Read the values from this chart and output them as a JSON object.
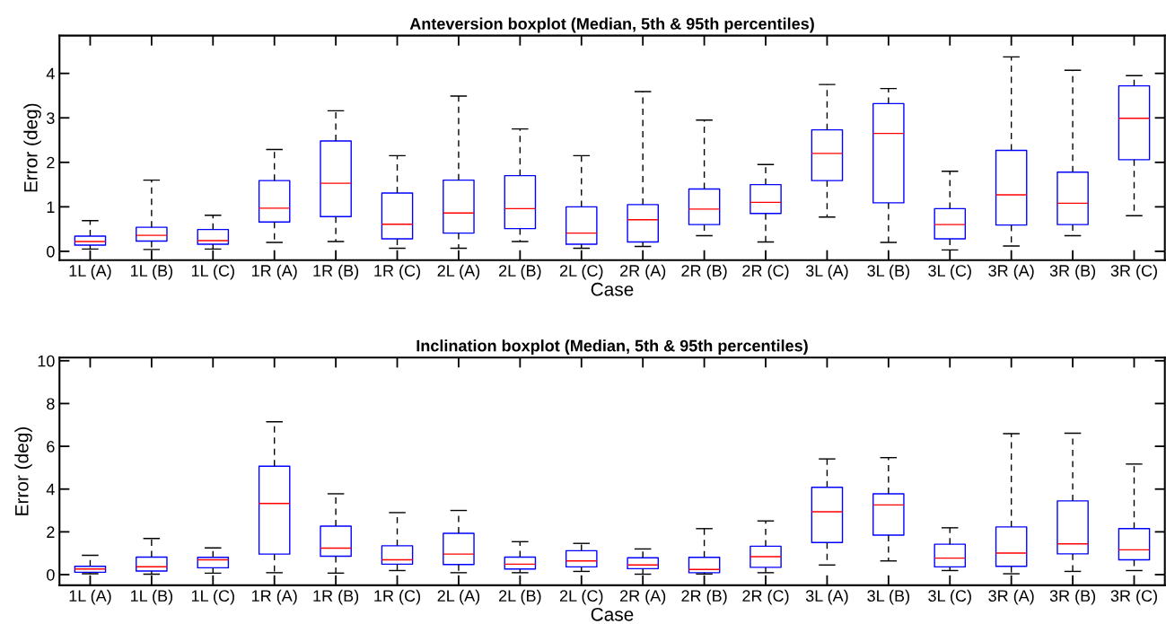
{
  "chart_data": [
    {
      "type": "box",
      "title": "Anteversion boxplot (Median, 5th & 95th percentiles)",
      "xlabel": "Case",
      "ylabel": "Error (deg)",
      "categories": [
        "1L (A)",
        "1L (B)",
        "1L (C)",
        "1R (A)",
        "1R (B)",
        "1R (C)",
        "2L (A)",
        "2L (B)",
        "2L (C)",
        "2R (A)",
        "2R (B)",
        "2R (C)",
        "3L (A)",
        "3L (B)",
        "3L (C)",
        "3R (A)",
        "3R (B)",
        "3R (C)"
      ],
      "ylim": [
        -0.2,
        4.85
      ],
      "yticks": [
        0,
        1,
        2,
        3,
        4
      ],
      "boxes": [
        {
          "low": 0.05,
          "q1": 0.14,
          "median": 0.22,
          "q3": 0.34,
          "high": 0.69
        },
        {
          "low": 0.04,
          "q1": 0.23,
          "median": 0.36,
          "q3": 0.54,
          "high": 1.6
        },
        {
          "low": 0.05,
          "q1": 0.16,
          "median": 0.24,
          "q3": 0.49,
          "high": 0.81
        },
        {
          "low": 0.2,
          "q1": 0.66,
          "median": 0.97,
          "q3": 1.59,
          "high": 2.29
        },
        {
          "low": 0.22,
          "q1": 0.78,
          "median": 1.53,
          "q3": 2.48,
          "high": 3.16
        },
        {
          "low": 0.07,
          "q1": 0.28,
          "median": 0.61,
          "q3": 1.31,
          "high": 2.15
        },
        {
          "low": 0.07,
          "q1": 0.41,
          "median": 0.86,
          "q3": 1.6,
          "high": 3.49
        },
        {
          "low": 0.22,
          "q1": 0.51,
          "median": 0.96,
          "q3": 1.7,
          "high": 2.75
        },
        {
          "low": 0.07,
          "q1": 0.16,
          "median": 0.41,
          "q3": 1.0,
          "high": 2.15
        },
        {
          "low": 0.11,
          "q1": 0.21,
          "median": 0.71,
          "q3": 1.05,
          "high": 3.59
        },
        {
          "low": 0.35,
          "q1": 0.6,
          "median": 0.95,
          "q3": 1.4,
          "high": 2.95
        },
        {
          "low": 0.21,
          "q1": 0.85,
          "median": 1.1,
          "q3": 1.5,
          "high": 1.95
        },
        {
          "low": 0.77,
          "q1": 1.59,
          "median": 2.2,
          "q3": 2.73,
          "high": 3.75
        },
        {
          "low": 0.2,
          "q1": 1.09,
          "median": 2.65,
          "q3": 3.32,
          "high": 3.66
        },
        {
          "low": 0.03,
          "q1": 0.28,
          "median": 0.6,
          "q3": 0.96,
          "high": 1.8
        },
        {
          "low": 0.12,
          "q1": 0.59,
          "median": 1.27,
          "q3": 2.27,
          "high": 4.37
        },
        {
          "low": 0.35,
          "q1": 0.6,
          "median": 1.08,
          "q3": 1.78,
          "high": 4.07
        },
        {
          "low": 0.8,
          "q1": 2.06,
          "median": 2.99,
          "q3": 3.72,
          "high": 3.95
        }
      ]
    },
    {
      "type": "box",
      "title": "Inclination boxplot (Median, 5th & 95th percentiles)",
      "xlabel": "Case",
      "ylabel": "Error (deg)",
      "categories": [
        "1L (A)",
        "1L (B)",
        "1L (C)",
        "1R (A)",
        "1R (B)",
        "1R (C)",
        "2L (A)",
        "2L (B)",
        "2L (C)",
        "2R (A)",
        "2R (B)",
        "2R (C)",
        "3L (A)",
        "3L (B)",
        "3L (C)",
        "3R (A)",
        "3R (B)",
        "3R (C)"
      ],
      "ylim": [
        -0.5,
        10.15
      ],
      "yticks": [
        0,
        2,
        4,
        6,
        8,
        10
      ],
      "boxes": [
        {
          "low": 0.04,
          "q1": 0.11,
          "median": 0.26,
          "q3": 0.39,
          "high": 0.9
        },
        {
          "low": 0.02,
          "q1": 0.17,
          "median": 0.37,
          "q3": 0.82,
          "high": 1.69
        },
        {
          "low": 0.07,
          "q1": 0.32,
          "median": 0.69,
          "q3": 0.81,
          "high": 1.25
        },
        {
          "low": 0.09,
          "q1": 0.96,
          "median": 3.33,
          "q3": 5.07,
          "high": 7.15
        },
        {
          "low": 0.07,
          "q1": 0.86,
          "median": 1.24,
          "q3": 2.27,
          "high": 3.78
        },
        {
          "low": 0.19,
          "q1": 0.49,
          "median": 0.69,
          "q3": 1.35,
          "high": 2.9
        },
        {
          "low": 0.09,
          "q1": 0.47,
          "median": 0.96,
          "q3": 1.93,
          "high": 3.0
        },
        {
          "low": 0.09,
          "q1": 0.26,
          "median": 0.49,
          "q3": 0.82,
          "high": 1.54
        },
        {
          "low": 0.15,
          "q1": 0.36,
          "median": 0.64,
          "q3": 1.12,
          "high": 1.46
        },
        {
          "low": 0.02,
          "q1": 0.28,
          "median": 0.45,
          "q3": 0.79,
          "high": 1.2
        },
        {
          "low": 0.03,
          "q1": 0.09,
          "median": 0.24,
          "q3": 0.81,
          "high": 2.15
        },
        {
          "low": 0.09,
          "q1": 0.34,
          "median": 0.84,
          "q3": 1.33,
          "high": 2.51
        },
        {
          "low": 0.45,
          "q1": 1.5,
          "median": 2.94,
          "q3": 4.08,
          "high": 5.41
        },
        {
          "low": 0.64,
          "q1": 1.85,
          "median": 3.26,
          "q3": 3.78,
          "high": 5.47
        },
        {
          "low": 0.19,
          "q1": 0.36,
          "median": 0.77,
          "q3": 1.42,
          "high": 2.19
        },
        {
          "low": 0.04,
          "q1": 0.39,
          "median": 1.01,
          "q3": 2.23,
          "high": 6.59
        },
        {
          "low": 0.15,
          "q1": 0.97,
          "median": 1.44,
          "q3": 3.45,
          "high": 6.61
        },
        {
          "low": 0.19,
          "q1": 0.69,
          "median": 1.16,
          "q3": 2.15,
          "high": 5.17
        }
      ]
    }
  ]
}
